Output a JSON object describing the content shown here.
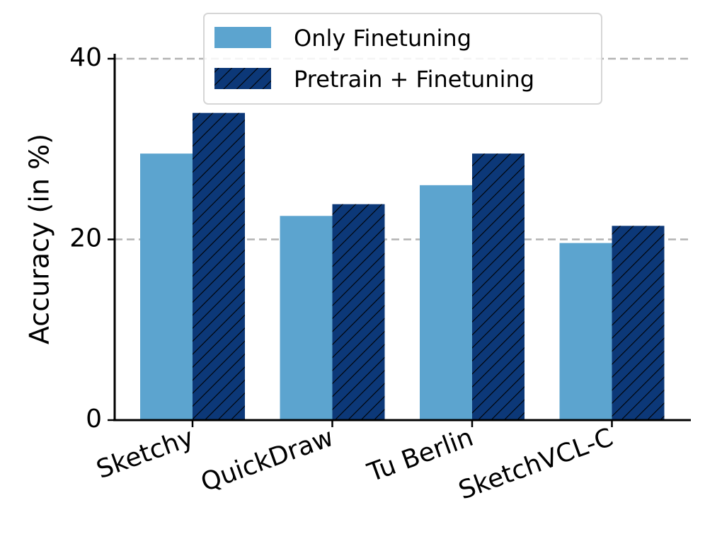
{
  "chart_data": {
    "type": "bar",
    "title": "",
    "xlabel": "",
    "ylabel": "Accuracy (in %)",
    "categories": [
      "Sketchy",
      "QuickDraw",
      "Tu Berlin",
      "SketchVCL-C"
    ],
    "series": [
      {
        "name": "Only Finetuning",
        "values": [
          29.5,
          22.6,
          26.0,
          19.6
        ],
        "color": "#5ca4cf",
        "hatch": false
      },
      {
        "name": "Pretrain + Finetuning",
        "values": [
          34.0,
          23.9,
          29.5,
          21.5
        ],
        "color": "#0c3878",
        "hatch": true
      }
    ],
    "ylim": [
      0,
      40
    ],
    "yticks": [
      0,
      20,
      40
    ],
    "ytick_labels": [
      "0",
      "20",
      "40"
    ],
    "grid": "horizontal dashed at 20 and 40",
    "legend_position": "top-center"
  }
}
